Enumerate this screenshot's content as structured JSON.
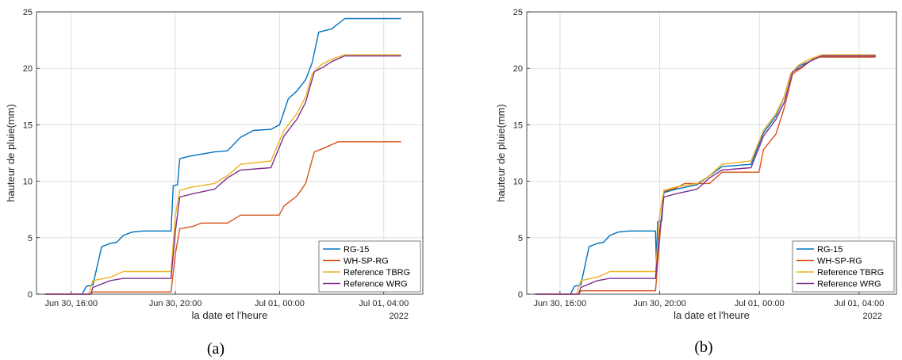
{
  "chart_data": [
    {
      "type": "line",
      "panel_label": "(a)",
      "xlabel": "la date et l'heure",
      "ylabel": "hauteur de pluie(mm)",
      "year_label": "2022",
      "ylim": [
        0,
        25
      ],
      "yticks": [
        0,
        5,
        10,
        15,
        20,
        25
      ],
      "xlim": [
        "2022-06-30 14:40",
        "2022-07-01 05:30"
      ],
      "xticks": [
        {
          "t": "2022-06-30 16:00",
          "label": "Jun 30, 16:00"
        },
        {
          "t": "2022-06-30 20:00",
          "label": "Jun 30, 20:00"
        },
        {
          "t": "2022-07-01 00:00",
          "label": "Jul 01, 00:00"
        },
        {
          "t": "2022-07-01 04:00",
          "label": "Jul 01, 04:00"
        }
      ],
      "grid": true,
      "legend_position": "bottom-right",
      "series": [
        {
          "name": "RG-15",
          "color": "#0072BD",
          "points": [
            [
              "2022-06-30 15:00",
              0
            ],
            [
              "2022-06-30 16:25",
              0
            ],
            [
              "2022-06-30 16:35",
              0.7
            ],
            [
              "2022-06-30 16:50",
              0.8
            ],
            [
              "2022-06-30 17:00",
              2.5
            ],
            [
              "2022-06-30 17:10",
              4.2
            ],
            [
              "2022-06-30 17:30",
              4.5
            ],
            [
              "2022-06-30 17:45",
              4.6
            ],
            [
              "2022-06-30 18:00",
              5.2
            ],
            [
              "2022-06-30 18:20",
              5.5
            ],
            [
              "2022-06-30 18:45",
              5.6
            ],
            [
              "2022-06-30 19:50",
              5.6
            ],
            [
              "2022-06-30 19:55",
              9.6
            ],
            [
              "2022-06-30 20:05",
              9.7
            ],
            [
              "2022-06-30 20:10",
              12
            ],
            [
              "2022-06-30 20:30",
              12.2
            ],
            [
              "2022-06-30 21:00",
              12.4
            ],
            [
              "2022-06-30 21:30",
              12.6
            ],
            [
              "2022-06-30 22:00",
              12.7
            ],
            [
              "2022-06-30 22:30",
              13.9
            ],
            [
              "2022-06-30 23:00",
              14.5
            ],
            [
              "2022-06-30 23:40",
              14.6
            ],
            [
              "2022-07-01 00:00",
              15
            ],
            [
              "2022-07-01 00:20",
              17.3
            ],
            [
              "2022-07-01 00:40",
              18
            ],
            [
              "2022-07-01 01:00",
              19
            ],
            [
              "2022-07-01 01:15",
              20.5
            ],
            [
              "2022-07-01 01:30",
              23.2
            ],
            [
              "2022-07-01 02:00",
              23.5
            ],
            [
              "2022-07-01 02:30",
              24.4
            ],
            [
              "2022-07-01 04:40",
              24.4
            ]
          ]
        },
        {
          "name": "WH-SP-RG",
          "color": "#D95319",
          "points": [
            [
              "2022-06-30 15:00",
              0
            ],
            [
              "2022-06-30 16:45",
              0
            ],
            [
              "2022-06-30 16:50",
              0.2
            ],
            [
              "2022-06-30 19:50",
              0.2
            ],
            [
              "2022-06-30 20:00",
              3.6
            ],
            [
              "2022-06-30 20:10",
              5.8
            ],
            [
              "2022-06-30 20:40",
              6
            ],
            [
              "2022-06-30 21:00",
              6.3
            ],
            [
              "2022-06-30 22:00",
              6.3
            ],
            [
              "2022-06-30 22:30",
              7
            ],
            [
              "2022-06-30 23:59",
              7
            ],
            [
              "2022-07-01 00:10",
              7.8
            ],
            [
              "2022-07-01 00:40",
              8.7
            ],
            [
              "2022-07-01 01:00",
              9.8
            ],
            [
              "2022-07-01 01:20",
              12.6
            ],
            [
              "2022-07-01 01:40",
              12.9
            ],
            [
              "2022-07-01 02:15",
              13.5
            ],
            [
              "2022-07-01 04:40",
              13.5
            ]
          ]
        },
        {
          "name": "Reference TBRG",
          "color": "#EDB120",
          "points": [
            [
              "2022-06-30 15:00",
              0
            ],
            [
              "2022-06-30 16:40",
              0
            ],
            [
              "2022-06-30 16:50",
              1.2
            ],
            [
              "2022-06-30 17:30",
              1.5
            ],
            [
              "2022-06-30 18:00",
              2
            ],
            [
              "2022-06-30 19:50",
              2
            ],
            [
              "2022-06-30 20:00",
              7
            ],
            [
              "2022-06-30 20:10",
              9.2
            ],
            [
              "2022-06-30 20:40",
              9.5
            ],
            [
              "2022-06-30 21:30",
              9.8
            ],
            [
              "2022-06-30 22:00",
              10.5
            ],
            [
              "2022-06-30 22:30",
              11.5
            ],
            [
              "2022-06-30 23:40",
              11.8
            ],
            [
              "2022-07-01 00:10",
              14.5
            ],
            [
              "2022-07-01 00:40",
              16
            ],
            [
              "2022-07-01 01:00",
              17.5
            ],
            [
              "2022-07-01 01:15",
              19.5
            ],
            [
              "2022-07-01 01:35",
              20.3
            ],
            [
              "2022-07-01 02:00",
              20.8
            ],
            [
              "2022-07-01 02:30",
              21.2
            ],
            [
              "2022-07-01 04:40",
              21.2
            ]
          ]
        },
        {
          "name": "Reference WRG",
          "color": "#7E2F8E",
          "points": [
            [
              "2022-06-30 15:00",
              0
            ],
            [
              "2022-06-30 16:45",
              0
            ],
            [
              "2022-06-30 16:50",
              0.6
            ],
            [
              "2022-06-30 17:10",
              0.9
            ],
            [
              "2022-06-30 17:30",
              1.2
            ],
            [
              "2022-06-30 18:00",
              1.4
            ],
            [
              "2022-06-30 19:50",
              1.4
            ],
            [
              "2022-06-30 20:00",
              5.6
            ],
            [
              "2022-06-30 20:10",
              8.6
            ],
            [
              "2022-06-30 20:40",
              8.9
            ],
            [
              "2022-06-30 21:30",
              9.3
            ],
            [
              "2022-06-30 22:00",
              10.3
            ],
            [
              "2022-06-30 22:30",
              11
            ],
            [
              "2022-06-30 23:40",
              11.2
            ],
            [
              "2022-07-01 00:10",
              14
            ],
            [
              "2022-07-01 00:40",
              15.5
            ],
            [
              "2022-07-01 01:00",
              17
            ],
            [
              "2022-07-01 01:20",
              19.7
            ],
            [
              "2022-07-01 01:40",
              20.1
            ],
            [
              "2022-07-01 02:00",
              20.6
            ],
            [
              "2022-07-01 02:30",
              21.1
            ],
            [
              "2022-07-01 04:40",
              21.1
            ]
          ]
        }
      ]
    },
    {
      "type": "line",
      "panel_label": "(b)",
      "xlabel": "la date et l'heure",
      "ylabel": "hauteur de pluie(mm)",
      "year_label": "2022",
      "ylim": [
        0,
        25
      ],
      "yticks": [
        0,
        5,
        10,
        15,
        20,
        25
      ],
      "xlim": [
        "2022-06-30 14:40",
        "2022-07-01 05:30"
      ],
      "xticks": [
        {
          "t": "2022-06-30 16:00",
          "label": "Jun 30, 16:00"
        },
        {
          "t": "2022-06-30 20:00",
          "label": "Jun 30, 20:00"
        },
        {
          "t": "2022-07-01 00:00",
          "label": "Jul 01, 00:00"
        },
        {
          "t": "2022-07-01 04:00",
          "label": "Jul 01, 04:00"
        }
      ],
      "grid": true,
      "legend_position": "bottom-right",
      "series": [
        {
          "name": "RG-15",
          "color": "#0072BD",
          "points": [
            [
              "2022-06-30 15:00",
              0
            ],
            [
              "2022-06-30 16:25",
              0
            ],
            [
              "2022-06-30 16:35",
              0.7
            ],
            [
              "2022-06-30 16:50",
              0.8
            ],
            [
              "2022-06-30 17:00",
              2.5
            ],
            [
              "2022-06-30 17:10",
              4.2
            ],
            [
              "2022-06-30 17:30",
              4.5
            ],
            [
              "2022-06-30 17:45",
              4.6
            ],
            [
              "2022-06-30 18:00",
              5.2
            ],
            [
              "2022-06-30 18:20",
              5.5
            ],
            [
              "2022-06-30 18:45",
              5.6
            ],
            [
              "2022-06-30 19:50",
              5.6
            ],
            [
              "2022-06-30 19:52",
              2.6
            ],
            [
              "2022-06-30 19:55",
              6.4
            ],
            [
              "2022-06-30 20:05",
              6.5
            ],
            [
              "2022-06-30 20:10",
              9
            ],
            [
              "2022-06-30 20:40",
              9.3
            ],
            [
              "2022-06-30 21:30",
              9.7
            ],
            [
              "2022-06-30 22:00",
              10.5
            ],
            [
              "2022-06-30 22:30",
              11.3
            ],
            [
              "2022-06-30 23:40",
              11.5
            ],
            [
              "2022-07-01 00:10",
              14.3
            ],
            [
              "2022-07-01 00:40",
              15.8
            ],
            [
              "2022-07-01 01:00",
              17.5
            ],
            [
              "2022-07-01 01:15",
              19.5
            ],
            [
              "2022-07-01 01:35",
              20.2
            ],
            [
              "2022-07-01 02:00",
              20.6
            ],
            [
              "2022-07-01 02:30",
              21.1
            ],
            [
              "2022-07-01 04:40",
              21.1
            ]
          ]
        },
        {
          "name": "WH-SP-RG",
          "color": "#D95319",
          "points": [
            [
              "2022-06-30 15:00",
              0
            ],
            [
              "2022-06-30 16:45",
              0
            ],
            [
              "2022-06-30 16:50",
              0.3
            ],
            [
              "2022-06-30 19:50",
              0.3
            ],
            [
              "2022-06-30 20:00",
              5
            ],
            [
              "2022-06-30 20:10",
              9.1
            ],
            [
              "2022-06-30 20:40",
              9.4
            ],
            [
              "2022-06-30 21:00",
              9.8
            ],
            [
              "2022-06-30 22:00",
              9.8
            ],
            [
              "2022-06-30 22:30",
              10.8
            ],
            [
              "2022-06-30 23:59",
              10.8
            ],
            [
              "2022-07-01 00:10",
              12.8
            ],
            [
              "2022-07-01 00:40",
              14.2
            ],
            [
              "2022-07-01 01:00",
              16.5
            ],
            [
              "2022-07-01 01:20",
              19.5
            ],
            [
              "2022-07-01 01:40",
              20
            ],
            [
              "2022-07-01 02:15",
              21
            ],
            [
              "2022-07-01 04:40",
              21
            ]
          ]
        },
        {
          "name": "Reference TBRG",
          "color": "#EDB120",
          "points": [
            [
              "2022-06-30 15:00",
              0
            ],
            [
              "2022-06-30 16:40",
              0
            ],
            [
              "2022-06-30 16:50",
              1.2
            ],
            [
              "2022-06-30 17:30",
              1.5
            ],
            [
              "2022-06-30 18:00",
              2
            ],
            [
              "2022-06-30 19:50",
              2
            ],
            [
              "2022-06-30 20:00",
              7
            ],
            [
              "2022-06-30 20:10",
              9.2
            ],
            [
              "2022-06-30 20:40",
              9.5
            ],
            [
              "2022-06-30 21:30",
              9.8
            ],
            [
              "2022-06-30 22:00",
              10.5
            ],
            [
              "2022-06-30 22:30",
              11.5
            ],
            [
              "2022-06-30 23:40",
              11.8
            ],
            [
              "2022-07-01 00:10",
              14.5
            ],
            [
              "2022-07-01 00:40",
              16
            ],
            [
              "2022-07-01 01:00",
              17.5
            ],
            [
              "2022-07-01 01:15",
              19.5
            ],
            [
              "2022-07-01 01:35",
              20.3
            ],
            [
              "2022-07-01 02:00",
              20.8
            ],
            [
              "2022-07-01 02:30",
              21.2
            ],
            [
              "2022-07-01 04:40",
              21.2
            ]
          ]
        },
        {
          "name": "Reference WRG",
          "color": "#7E2F8E",
          "points": [
            [
              "2022-06-30 15:00",
              0
            ],
            [
              "2022-06-30 16:45",
              0
            ],
            [
              "2022-06-30 16:50",
              0.6
            ],
            [
              "2022-06-30 17:10",
              0.9
            ],
            [
              "2022-06-30 17:30",
              1.2
            ],
            [
              "2022-06-30 18:00",
              1.4
            ],
            [
              "2022-06-30 19:50",
              1.4
            ],
            [
              "2022-06-30 20:00",
              5.6
            ],
            [
              "2022-06-30 20:10",
              8.6
            ],
            [
              "2022-06-30 20:40",
              8.9
            ],
            [
              "2022-06-30 21:30",
              9.3
            ],
            [
              "2022-06-30 22:00",
              10.3
            ],
            [
              "2022-06-30 22:30",
              11
            ],
            [
              "2022-06-30 23:40",
              11.2
            ],
            [
              "2022-07-01 00:10",
              14
            ],
            [
              "2022-07-01 00:40",
              15.5
            ],
            [
              "2022-07-01 01:00",
              17
            ],
            [
              "2022-07-01 01:20",
              19.7
            ],
            [
              "2022-07-01 01:40",
              20.1
            ],
            [
              "2022-07-01 02:00",
              20.6
            ],
            [
              "2022-07-01 02:30",
              21.1
            ],
            [
              "2022-07-01 04:40",
              21.1
            ]
          ]
        }
      ]
    }
  ]
}
